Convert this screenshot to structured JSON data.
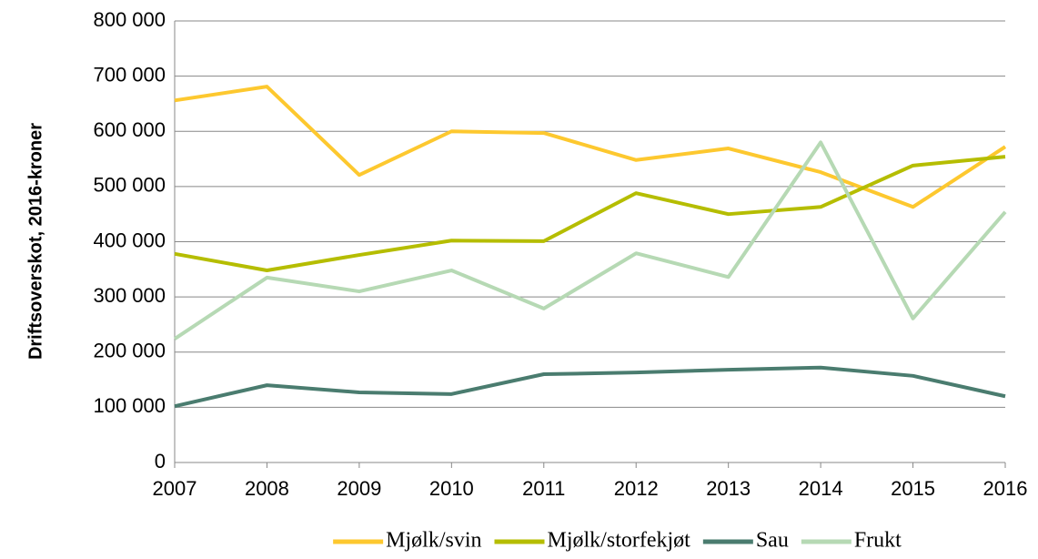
{
  "chart_data": {
    "type": "line",
    "y_label": "Driftsoverskot, 2016-kroner",
    "x": [
      2007,
      2008,
      2009,
      2010,
      2011,
      2012,
      2013,
      2014,
      2015,
      2016
    ],
    "xlim": [
      2007,
      2016
    ],
    "xticks": [
      2007,
      2008,
      2009,
      2010,
      2011,
      2012,
      2013,
      2014,
      2015,
      2016
    ],
    "ylim": [
      0,
      800000
    ],
    "yticks": [
      0,
      {
        "value": 100000,
        "label": "100 000"
      },
      {
        "value": 200000,
        "label": "200 000"
      },
      {
        "value": 300000,
        "label": "300 000"
      },
      {
        "value": 400000,
        "label": "400 000"
      },
      {
        "value": 500000,
        "label": "500 000"
      },
      {
        "value": 600000,
        "label": "600 000"
      },
      {
        "value": 700000,
        "label": "700 000"
      },
      {
        "value": 800000,
        "label": "800 000"
      }
    ],
    "grid": true,
    "legend": "bottom",
    "series": [
      {
        "name": "Mjølk/svin",
        "color": "#fdc82f",
        "values": [
          656000,
          681000,
          521000,
          600000,
          597000,
          548000,
          569000,
          526000,
          463000,
          572000
        ]
      },
      {
        "name": "Mjølk/storfekjøt",
        "color": "#b5bd00",
        "values": [
          378000,
          348000,
          376000,
          402000,
          401000,
          488000,
          450000,
          463000,
          538000,
          554000
        ]
      },
      {
        "name": "Sau",
        "color": "#4a7c6f",
        "values": [
          102000,
          140000,
          127000,
          124000,
          160000,
          163000,
          168000,
          172000,
          157000,
          120000
        ]
      },
      {
        "name": "Frukt",
        "color": "#b6d9b4",
        "values": [
          224000,
          335000,
          310000,
          348000,
          279000,
          379000,
          336000,
          580000,
          261000,
          454000
        ]
      }
    ]
  }
}
